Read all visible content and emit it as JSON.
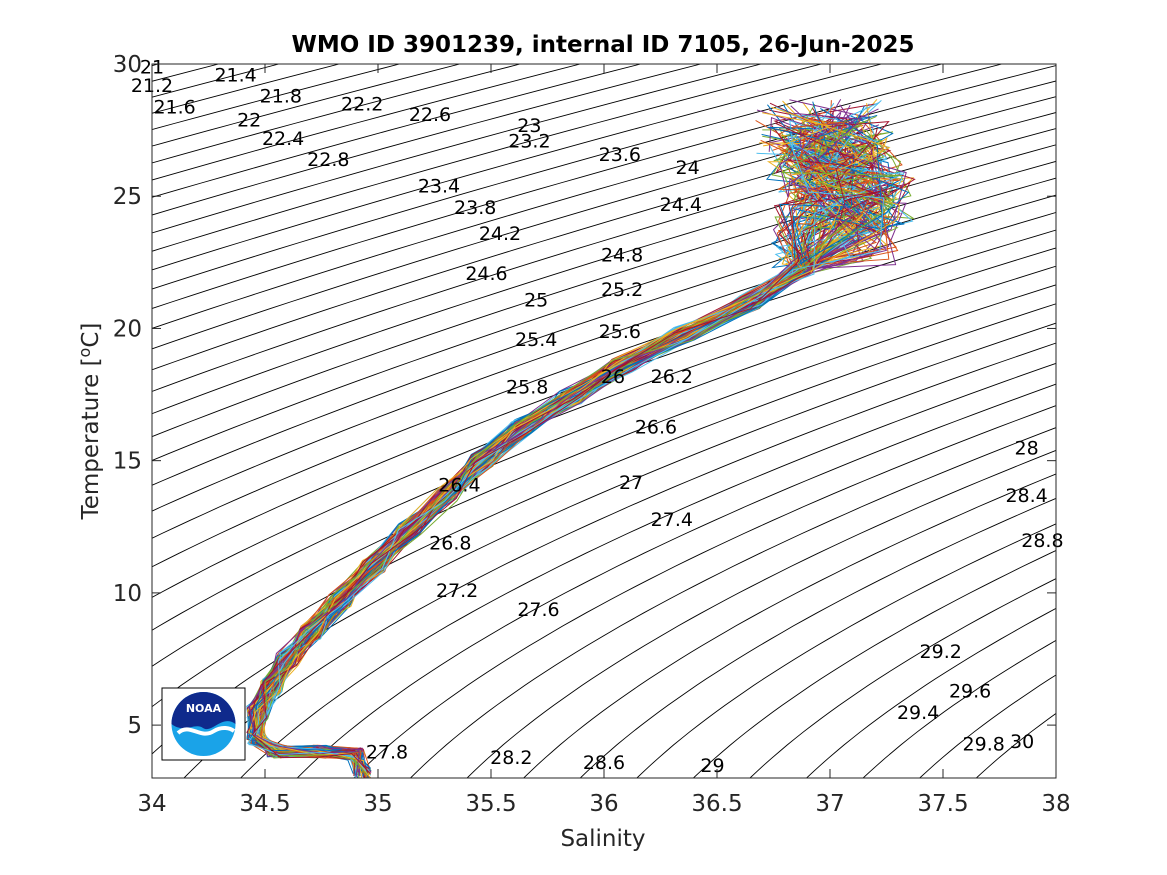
{
  "chart_data": {
    "type": "line",
    "title": "WMO ID 3901239, internal ID 7105, 26-Jun-2025",
    "xlabel": "Salinity",
    "ylabel": "Temperature [°C]",
    "ylabel_main": "Temperature [",
    "ylabel_sup": "o",
    "ylabel_unit": "C]",
    "xlim": [
      34,
      38
    ],
    "ylim": [
      3,
      30
    ],
    "xticks": [
      "34",
      "34.5",
      "35",
      "35.5",
      "36",
      "36.5",
      "37",
      "37.5",
      "38"
    ],
    "yticks": [
      "5",
      "10",
      "15",
      "20",
      "25",
      "30"
    ],
    "grid": false,
    "density_contours": {
      "levels": [
        21,
        21.2,
        21.4,
        21.6,
        21.8,
        22,
        22.2,
        22.4,
        22.6,
        22.8,
        23,
        23.2,
        23.4,
        23.6,
        23.8,
        24,
        24.2,
        24.4,
        24.6,
        24.8,
        25,
        25.2,
        25.4,
        25.6,
        25.8,
        26,
        26.2,
        26.4,
        26.6,
        26.8,
        27,
        27.2,
        27.4,
        27.6,
        27.8,
        28,
        28.2,
        28.4,
        28.6,
        28.8,
        29,
        29.2,
        29.4,
        29.6,
        29.8,
        30
      ],
      "labels": [
        {
          "text": "21",
          "s": 34.0,
          "t": 29.9
        },
        {
          "text": "21.2",
          "s": 34.0,
          "t": 29.2
        },
        {
          "text": "21.4",
          "s": 34.37,
          "t": 29.6
        },
        {
          "text": "21.6",
          "s": 34.1,
          "t": 28.4
        },
        {
          "text": "21.8",
          "s": 34.57,
          "t": 28.8
        },
        {
          "text": "22",
          "s": 34.43,
          "t": 27.9
        },
        {
          "text": "22.2",
          "s": 34.93,
          "t": 28.5
        },
        {
          "text": "22.4",
          "s": 34.58,
          "t": 27.2
        },
        {
          "text": "22.6",
          "s": 35.23,
          "t": 28.1
        },
        {
          "text": "22.8",
          "s": 34.78,
          "t": 26.4
        },
        {
          "text": "23",
          "s": 35.67,
          "t": 27.7
        },
        {
          "text": "23.2",
          "s": 35.67,
          "t": 27.1
        },
        {
          "text": "23.4",
          "s": 35.27,
          "t": 25.4
        },
        {
          "text": "23.6",
          "s": 36.07,
          "t": 26.6
        },
        {
          "text": "23.8",
          "s": 35.43,
          "t": 24.6
        },
        {
          "text": "24",
          "s": 36.37,
          "t": 26.1
        },
        {
          "text": "24.2",
          "s": 35.54,
          "t": 23.6
        },
        {
          "text": "24.4",
          "s": 36.34,
          "t": 24.7
        },
        {
          "text": "24.6",
          "s": 35.48,
          "t": 22.1
        },
        {
          "text": "24.8",
          "s": 36.08,
          "t": 22.8
        },
        {
          "text": "25",
          "s": 35.7,
          "t": 21.1
        },
        {
          "text": "25.2",
          "s": 36.08,
          "t": 21.5
        },
        {
          "text": "25.4",
          "s": 35.7,
          "t": 19.6
        },
        {
          "text": "25.6",
          "s": 36.07,
          "t": 19.9
        },
        {
          "text": "25.8",
          "s": 35.66,
          "t": 17.8
        },
        {
          "text": "26",
          "s": 36.04,
          "t": 18.2
        },
        {
          "text": "26.2",
          "s": 36.3,
          "t": 18.2
        },
        {
          "text": "26.4",
          "s": 35.36,
          "t": 14.1
        },
        {
          "text": "26.6",
          "s": 36.23,
          "t": 16.3
        },
        {
          "text": "26.8",
          "s": 35.32,
          "t": 11.9
        },
        {
          "text": "27",
          "s": 36.12,
          "t": 14.2
        },
        {
          "text": "27.2",
          "s": 35.35,
          "t": 10.1
        },
        {
          "text": "27.4",
          "s": 36.3,
          "t": 12.8
        },
        {
          "text": "27.6",
          "s": 35.71,
          "t": 9.4
        },
        {
          "text": "27.8",
          "s": 35.04,
          "t": 4.0
        },
        {
          "text": "28",
          "s": 37.87,
          "t": 15.5
        },
        {
          "text": "28.2",
          "s": 35.59,
          "t": 3.8
        },
        {
          "text": "28.4",
          "s": 37.87,
          "t": 13.7
        },
        {
          "text": "28.6",
          "s": 36.0,
          "t": 3.6
        },
        {
          "text": "28.8",
          "s": 37.94,
          "t": 12.0
        },
        {
          "text": "29",
          "s": 36.48,
          "t": 3.5
        },
        {
          "text": "29.2",
          "s": 37.49,
          "t": 7.8
        },
        {
          "text": "29.4",
          "s": 37.39,
          "t": 5.5
        },
        {
          "text": "29.6",
          "s": 37.62,
          "t": 6.3
        },
        {
          "text": "29.8",
          "s": 37.68,
          "t": 4.3
        },
        {
          "text": "30",
          "s": 37.85,
          "t": 4.4
        }
      ]
    },
    "profiles": {
      "count": 140,
      "mean_path": [
        {
          "s": 34.93,
          "t": 3.2
        },
        {
          "s": 34.9,
          "t": 3.9
        },
        {
          "s": 34.75,
          "t": 4.0
        },
        {
          "s": 34.55,
          "t": 4.0
        },
        {
          "s": 34.46,
          "t": 4.5
        },
        {
          "s": 34.47,
          "t": 5.5
        },
        {
          "s": 34.53,
          "t": 6.5
        },
        {
          "s": 34.6,
          "t": 7.5
        },
        {
          "s": 34.7,
          "t": 8.5
        },
        {
          "s": 34.83,
          "t": 9.7
        },
        {
          "s": 34.98,
          "t": 11.0
        },
        {
          "s": 35.14,
          "t": 12.4
        },
        {
          "s": 35.3,
          "t": 13.7
        },
        {
          "s": 35.46,
          "t": 15.0
        },
        {
          "s": 35.64,
          "t": 16.3
        },
        {
          "s": 35.85,
          "t": 17.4
        },
        {
          "s": 36.08,
          "t": 18.6
        },
        {
          "s": 36.36,
          "t": 19.8
        },
        {
          "s": 36.65,
          "t": 21.0
        },
        {
          "s": 36.88,
          "t": 22.3
        },
        {
          "s": 37.02,
          "t": 23.5
        },
        {
          "s": 37.1,
          "t": 24.8
        },
        {
          "s": 37.05,
          "t": 25.8
        },
        {
          "s": 37.0,
          "t": 26.8
        },
        {
          "s": 36.95,
          "t": 27.5
        }
      ],
      "colors": [
        "#0072bd",
        "#d95319",
        "#edb120",
        "#7e2f8e",
        "#77ac30",
        "#4dbeee",
        "#a2142f"
      ]
    },
    "logo": {
      "text": "NOAA"
    }
  }
}
